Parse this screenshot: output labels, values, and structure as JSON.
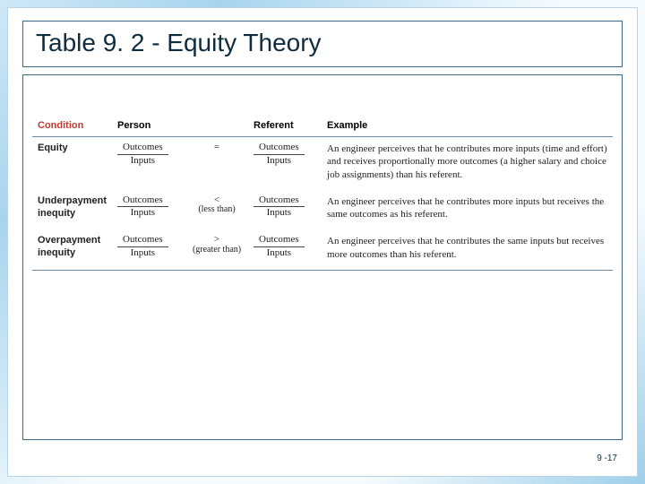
{
  "slide": {
    "title": "Table 9. 2 - Equity Theory",
    "page_number": "9 -17",
    "background_gradient": [
      "#cfe8f7",
      "#a8d4ee",
      "#f5fbfe",
      "#9ecfea"
    ],
    "border_color": "#3a6a8a"
  },
  "table": {
    "type": "table",
    "header_font": "Arial",
    "body_font": "Times New Roman",
    "header_fontsize": 11,
    "body_fontsize": 11,
    "header_rule_color": "#6a8aa6",
    "condition_header_color": "#c23a2e",
    "columns": {
      "condition": "Condition",
      "person": "Person",
      "referent": "Referent",
      "example": "Example"
    },
    "ratio": {
      "numerator": "Outcomes",
      "denominator": "Inputs"
    },
    "rows": [
      {
        "condition": "Equity",
        "operator": {
          "symbol": "=",
          "label": ""
        },
        "example": "An engineer perceives that he contributes more inputs (time and effort) and receives proportionally more outcomes (a higher salary and choice job assignments) than his referent."
      },
      {
        "condition": "Underpayment inequity",
        "operator": {
          "symbol": "<",
          "label": "(less than)"
        },
        "example": "An engineer perceives that he contributes more inputs but receives the same outcomes as his referent."
      },
      {
        "condition": "Overpayment inequity",
        "operator": {
          "symbol": ">",
          "label": "(greater than)"
        },
        "example": "An engineer perceives that he contributes the same inputs but receives more outcomes than his referent."
      }
    ]
  }
}
